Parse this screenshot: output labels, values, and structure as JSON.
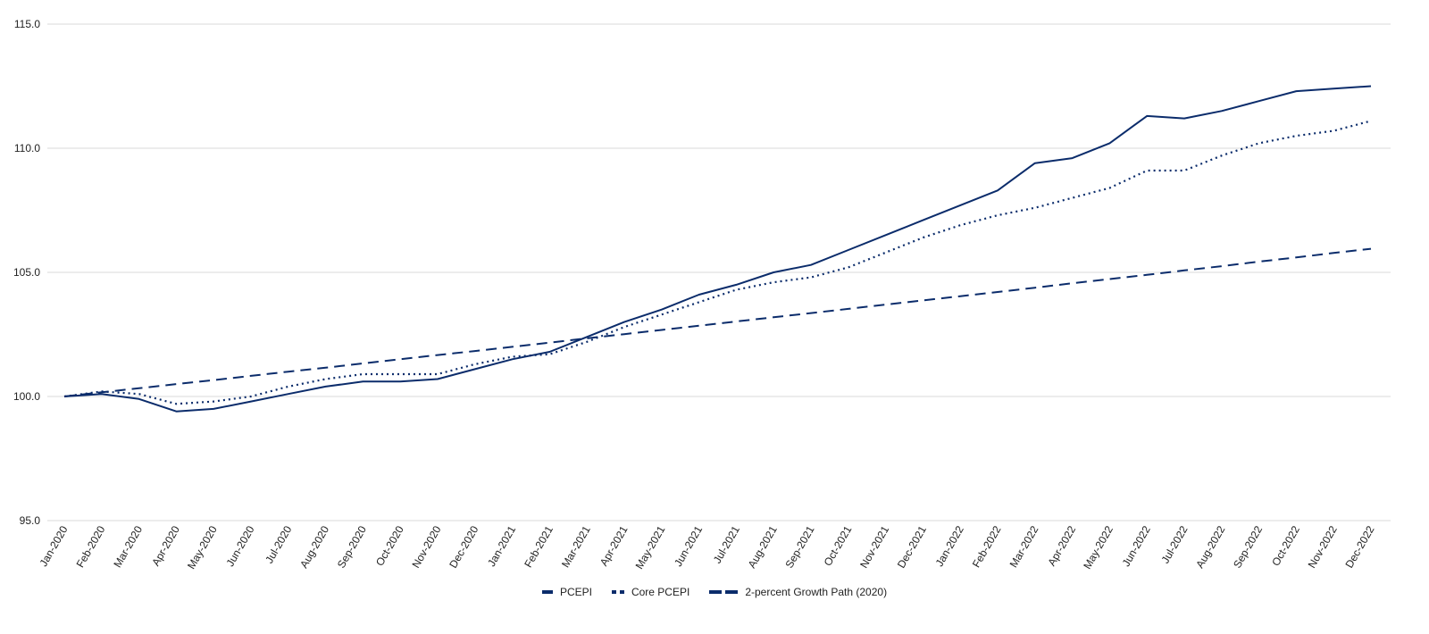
{
  "chart_data": {
    "type": "line",
    "title": "",
    "xlabel": "",
    "ylabel": "",
    "ylim": [
      95.0,
      115.0
    ],
    "yticks": [
      "95.0",
      "100.0",
      "105.0",
      "110.0",
      "115.0"
    ],
    "grid": true,
    "legend_position": "bottom",
    "categories": [
      "Jan-2020",
      "Feb-2020",
      "Mar-2020",
      "Apr-2020",
      "May-2020",
      "Jun-2020",
      "Jul-2020",
      "Aug-2020",
      "Sep-2020",
      "Oct-2020",
      "Nov-2020",
      "Dec-2020",
      "Jan-2021",
      "Feb-2021",
      "Mar-2021",
      "Apr-2021",
      "May-2021",
      "Jun-2021",
      "Jul-2021",
      "Aug-2021",
      "Sep-2021",
      "Oct-2021",
      "Nov-2021",
      "Dec-2021",
      "Jan-2022",
      "Feb-2022",
      "Mar-2022",
      "Apr-2022",
      "May-2022",
      "Jun-2022",
      "Jul-2022",
      "Aug-2022",
      "Sep-2022",
      "Oct-2022",
      "Nov-2022",
      "Dec-2022"
    ],
    "series": [
      {
        "name": "PCEPI",
        "style": "solid",
        "color": "#0b2c6b",
        "values": [
          100.0,
          100.1,
          99.9,
          99.4,
          99.5,
          99.8,
          100.1,
          100.4,
          100.6,
          100.6,
          100.7,
          101.1,
          101.5,
          101.8,
          102.4,
          103.0,
          103.5,
          104.1,
          104.5,
          105.0,
          105.3,
          105.9,
          106.5,
          107.1,
          107.7,
          108.3,
          109.4,
          109.6,
          110.2,
          111.3,
          111.2,
          111.5,
          111.9,
          112.3,
          112.4,
          112.5
        ]
      },
      {
        "name": "Core PCEPI",
        "style": "dotted",
        "color": "#0b2c6b",
        "values": [
          100.0,
          100.2,
          100.1,
          99.7,
          99.8,
          100.0,
          100.4,
          100.7,
          100.9,
          100.9,
          100.9,
          101.3,
          101.6,
          101.7,
          102.2,
          102.8,
          103.3,
          103.8,
          104.3,
          104.6,
          104.8,
          105.2,
          105.8,
          106.4,
          106.9,
          107.3,
          107.6,
          108.0,
          108.4,
          109.1,
          109.1,
          109.7,
          110.2,
          110.5,
          110.7,
          111.1
        ]
      },
      {
        "name": "2-percent Growth Path (2020)",
        "style": "dashed",
        "color": "#0b2c6b",
        "values": [
          100.0,
          100.17,
          100.33,
          100.5,
          100.66,
          100.83,
          101.0,
          101.16,
          101.33,
          101.5,
          101.67,
          101.83,
          102.0,
          102.17,
          102.34,
          102.51,
          102.68,
          102.85,
          103.02,
          103.19,
          103.36,
          103.53,
          103.7,
          103.87,
          104.04,
          104.21,
          104.38,
          104.56,
          104.73,
          104.9,
          105.08,
          105.25,
          105.43,
          105.6,
          105.78,
          105.95
        ]
      }
    ]
  },
  "legend": {
    "items": [
      {
        "label": "PCEPI"
      },
      {
        "label": "Core PCEPI"
      },
      {
        "label": "2-percent Growth Path (2020)"
      }
    ]
  }
}
